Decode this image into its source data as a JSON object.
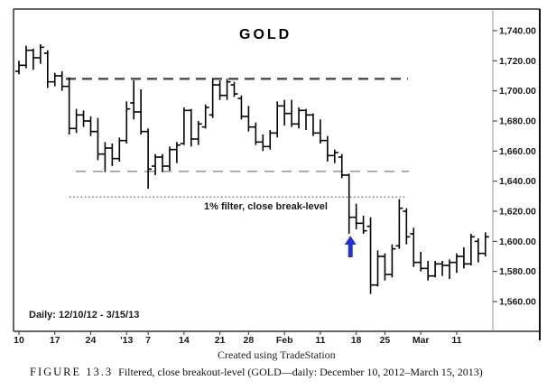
{
  "title": "GOLD",
  "range_label": "Daily: 12/10/12 - 3/15/13",
  "filter_label": "1% filter, close break-level",
  "watermark": "Created using TradeStation",
  "caption": {
    "figure": "FIGURE 13.3",
    "text": "Filtered, close breakout-level (GOLD—daily: December 10, 2012–March 15, 2013)"
  },
  "colors": {
    "bar": "#000000",
    "frame": "#333333",
    "outer_border": "#111111",
    "separator": "#9a9a9a",
    "tick_text": "#1a1a1a",
    "resistance_line": "#474747",
    "support_line": "#9a9a9a",
    "filter_line": "#555555",
    "arrow": "#2233cc"
  },
  "y_axis": {
    "min": 1560,
    "max": 1740,
    "step": 20,
    "ticks": [
      {
        "label": "1,740.00",
        "value": 1740
      },
      {
        "label": "1,720.00",
        "value": 1720
      },
      {
        "label": "1,700.00",
        "value": 1700
      },
      {
        "label": "1,680.00",
        "value": 1680
      },
      {
        "label": "1,660.00",
        "value": 1660
      },
      {
        "label": "1,640.00",
        "value": 1640
      },
      {
        "label": "1,620.00",
        "value": 1620
      },
      {
        "label": "1,600.00",
        "value": 1600
      },
      {
        "label": "1,580.00",
        "value": 1580
      },
      {
        "label": "1,560.00",
        "value": 1560
      }
    ]
  },
  "x_axis": {
    "ticks": [
      {
        "label": "10",
        "index": 0
      },
      {
        "label": "17",
        "index": 5
      },
      {
        "label": "24",
        "index": 10
      },
      {
        "label": "'13",
        "index": 15
      },
      {
        "label": "7",
        "index": 18
      },
      {
        "label": "14",
        "index": 23
      },
      {
        "label": "21",
        "index": 28
      },
      {
        "label": "28",
        "index": 32
      },
      {
        "label": "Feb",
        "index": 37
      },
      {
        "label": "11",
        "index": 42
      },
      {
        "label": "18",
        "index": 47
      },
      {
        "label": "25",
        "index": 51
      },
      {
        "label": "Mar",
        "index": 56
      },
      {
        "label": "11",
        "index": 61
      }
    ]
  },
  "chart_data": {
    "type": "bar",
    "subtype": "ohlc-bars",
    "symbol": "GOLD",
    "period": "daily 12/10/12 - 3/15/13",
    "ylim": [
      1555,
      1745
    ],
    "levels": {
      "resistance": 1708,
      "support": 1646.5,
      "filter_1pct": 1629.5
    },
    "annotations": {
      "arrow_bar_index": 46,
      "arrow_direction": "up",
      "filter_text": "1% filter, close break-level"
    },
    "bars_format": [
      "open",
      "high",
      "low",
      "close"
    ],
    "bars": [
      [
        1713,
        1720,
        1711,
        1717
      ],
      [
        1717,
        1730,
        1715,
        1727
      ],
      [
        1727,
        1728,
        1714,
        1722
      ],
      [
        1722,
        1731,
        1718,
        1729
      ],
      [
        1725,
        1727,
        1702,
        1706
      ],
      [
        1706,
        1712,
        1703,
        1710
      ],
      [
        1710,
        1713,
        1700,
        1703
      ],
      [
        1703,
        1709,
        1671,
        1675
      ],
      [
        1675,
        1688,
        1672,
        1684
      ],
      [
        1684,
        1687,
        1676,
        1680
      ],
      [
        1680,
        1683,
        1670,
        1673
      ],
      [
        1673,
        1682,
        1654,
        1658
      ],
      [
        1658,
        1666,
        1646,
        1662
      ],
      [
        1662,
        1665,
        1650,
        1655
      ],
      [
        1655,
        1669,
        1653,
        1667
      ],
      [
        1667,
        1693,
        1665,
        1688
      ],
      [
        1692,
        1707,
        1681,
        1686
      ],
      [
        1686,
        1701,
        1671,
        1673
      ],
      [
        1673,
        1675,
        1635,
        1648
      ],
      [
        1650,
        1658,
        1644,
        1656
      ],
      [
        1656,
        1658,
        1646,
        1650
      ],
      [
        1650,
        1663,
        1647,
        1661
      ],
      [
        1661,
        1666,
        1652,
        1664
      ],
      [
        1665,
        1689,
        1664,
        1687
      ],
      [
        1687,
        1688,
        1663,
        1668
      ],
      [
        1668,
        1680,
        1664,
        1678
      ],
      [
        1676,
        1691,
        1675,
        1689
      ],
      [
        1684,
        1708,
        1682,
        1704
      ],
      [
        1704,
        1707,
        1694,
        1697
      ],
      [
        1697,
        1708,
        1694,
        1706
      ],
      [
        1704,
        1706,
        1696,
        1698
      ],
      [
        1695,
        1697,
        1681,
        1683
      ],
      [
        1683,
        1690,
        1673,
        1676
      ],
      [
        1676,
        1679,
        1664,
        1666
      ],
      [
        1666,
        1671,
        1660,
        1663
      ],
      [
        1663,
        1674,
        1661,
        1672
      ],
      [
        1672,
        1693,
        1669,
        1690
      ],
      [
        1690,
        1694,
        1677,
        1685
      ],
      [
        1685,
        1694,
        1676,
        1678
      ],
      [
        1678,
        1689,
        1675,
        1687
      ],
      [
        1687,
        1688,
        1674,
        1684
      ],
      [
        1684,
        1685,
        1670,
        1672
      ],
      [
        1672,
        1681,
        1665,
        1667
      ],
      [
        1667,
        1670,
        1653,
        1657
      ],
      [
        1657,
        1661,
        1652,
        1659
      ],
      [
        1656,
        1658,
        1642,
        1644
      ],
      [
        1644,
        1645,
        1605,
        1616
      ],
      [
        1616,
        1625,
        1608,
        1612
      ],
      [
        1612,
        1617,
        1605,
        1607
      ],
      [
        1610,
        1616,
        1565,
        1571
      ],
      [
        1571,
        1594,
        1570,
        1590
      ],
      [
        1590,
        1592,
        1574,
        1578
      ],
      [
        1578,
        1598,
        1576,
        1595
      ],
      [
        1597,
        1628,
        1595,
        1622
      ],
      [
        1620,
        1622,
        1598,
        1603
      ],
      [
        1605,
        1609,
        1583,
        1586
      ],
      [
        1586,
        1593,
        1580,
        1582
      ],
      [
        1582,
        1587,
        1574,
        1577
      ],
      [
        1577,
        1587,
        1576,
        1585
      ],
      [
        1585,
        1587,
        1577,
        1584
      ],
      [
        1584,
        1588,
        1575,
        1586
      ],
      [
        1586,
        1592,
        1579,
        1590
      ],
      [
        1590,
        1596,
        1582,
        1585
      ],
      [
        1585,
        1605,
        1584,
        1603
      ],
      [
        1600,
        1602,
        1586,
        1592
      ],
      [
        1592,
        1606,
        1590,
        1603
      ]
    ]
  }
}
